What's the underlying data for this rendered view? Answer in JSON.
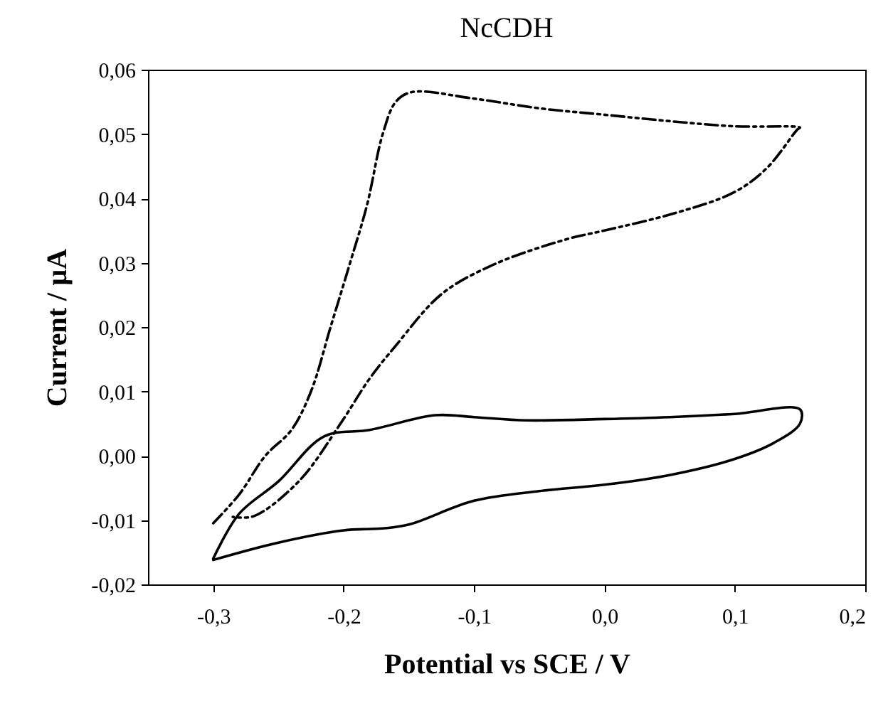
{
  "chart_data": {
    "type": "line",
    "title": "NcCDH",
    "xlabel": "Potential vs SCE / V",
    "ylabel": "Current / µA",
    "xlim": [
      -0.35,
      0.2
    ],
    "xticks": [
      {
        "value": -0.3,
        "label": "-0,3"
      },
      {
        "value": -0.2,
        "label": "-0,2"
      },
      {
        "value": -0.1,
        "label": "-0,1"
      },
      {
        "value": 0,
        "label": "0,0"
      },
      {
        "value": 0.1,
        "label": "0,1"
      },
      {
        "value": 0.2,
        "label": "0,2"
      }
    ],
    "ylim": [
      -0.02,
      0.06
    ],
    "yticks": [
      {
        "value": -0.02,
        "label": "-0,02"
      },
      {
        "value": -0.01,
        "label": "-0,01"
      },
      {
        "value": 0,
        "label": "0,00"
      },
      {
        "value": 0.01,
        "label": "0,01"
      },
      {
        "value": 0.02,
        "label": "0,02"
      },
      {
        "value": 0.03,
        "label": "0,03"
      },
      {
        "value": 0.04,
        "label": "0,04"
      },
      {
        "value": 0.05,
        "label": "0,05"
      },
      {
        "value": 0.06,
        "label": "0,06"
      }
    ],
    "grid": false,
    "series": [
      {
        "color": "#000000",
        "line_style": "solid",
        "x": [
          -0.3,
          -0.28,
          -0.25,
          -0.215,
          -0.18,
          -0.13,
          -0.1,
          -0.06,
          0,
          0.05,
          0.1,
          0.15,
          0.15,
          0.13,
          0.1,
          0.05,
          0,
          -0.05,
          -0.1,
          -0.15,
          -0.17,
          -0.2,
          -0.25,
          -0.3
        ],
        "values": [
          -0.016,
          -0.009,
          -0.004,
          0.003,
          0.004,
          0.0063,
          0.006,
          0.0055,
          0.0057,
          0.006,
          0.0065,
          0.0072,
          0.005,
          0.002,
          -0.0005,
          -0.003,
          -0.0045,
          -0.0055,
          -0.007,
          -0.0107,
          -0.0113,
          -0.0116,
          -0.0135,
          -0.0162
        ]
      },
      {
        "color": "#000000",
        "line_style": "dashed",
        "x": [
          -0.3,
          -0.28,
          -0.26,
          -0.24,
          -0.225,
          -0.21,
          -0.195,
          -0.182,
          -0.17,
          -0.16,
          -0.148,
          -0.1,
          -0.05,
          0,
          0.05,
          0.1,
          0.15,
          0.148,
          0.125,
          0.1,
          0.054,
          0,
          -0.028,
          -0.085,
          -0.125,
          -0.16,
          -0.18,
          -0.203,
          -0.234,
          -0.269,
          -0.285
        ],
        "values": [
          -0.0105,
          -0.006,
          0,
          0.004,
          0.01,
          0.02,
          0.03,
          0.039,
          0.05,
          0.055,
          0.0565,
          0.0555,
          0.054,
          0.053,
          0.052,
          0.0512,
          0.051,
          0.0507,
          0.0448,
          0.041,
          0.0377,
          0.035,
          0.0337,
          0.0297,
          0.0251,
          0.0171,
          0.012,
          0.0048,
          -0.0039,
          -0.0094,
          -0.0095
        ]
      }
    ]
  }
}
